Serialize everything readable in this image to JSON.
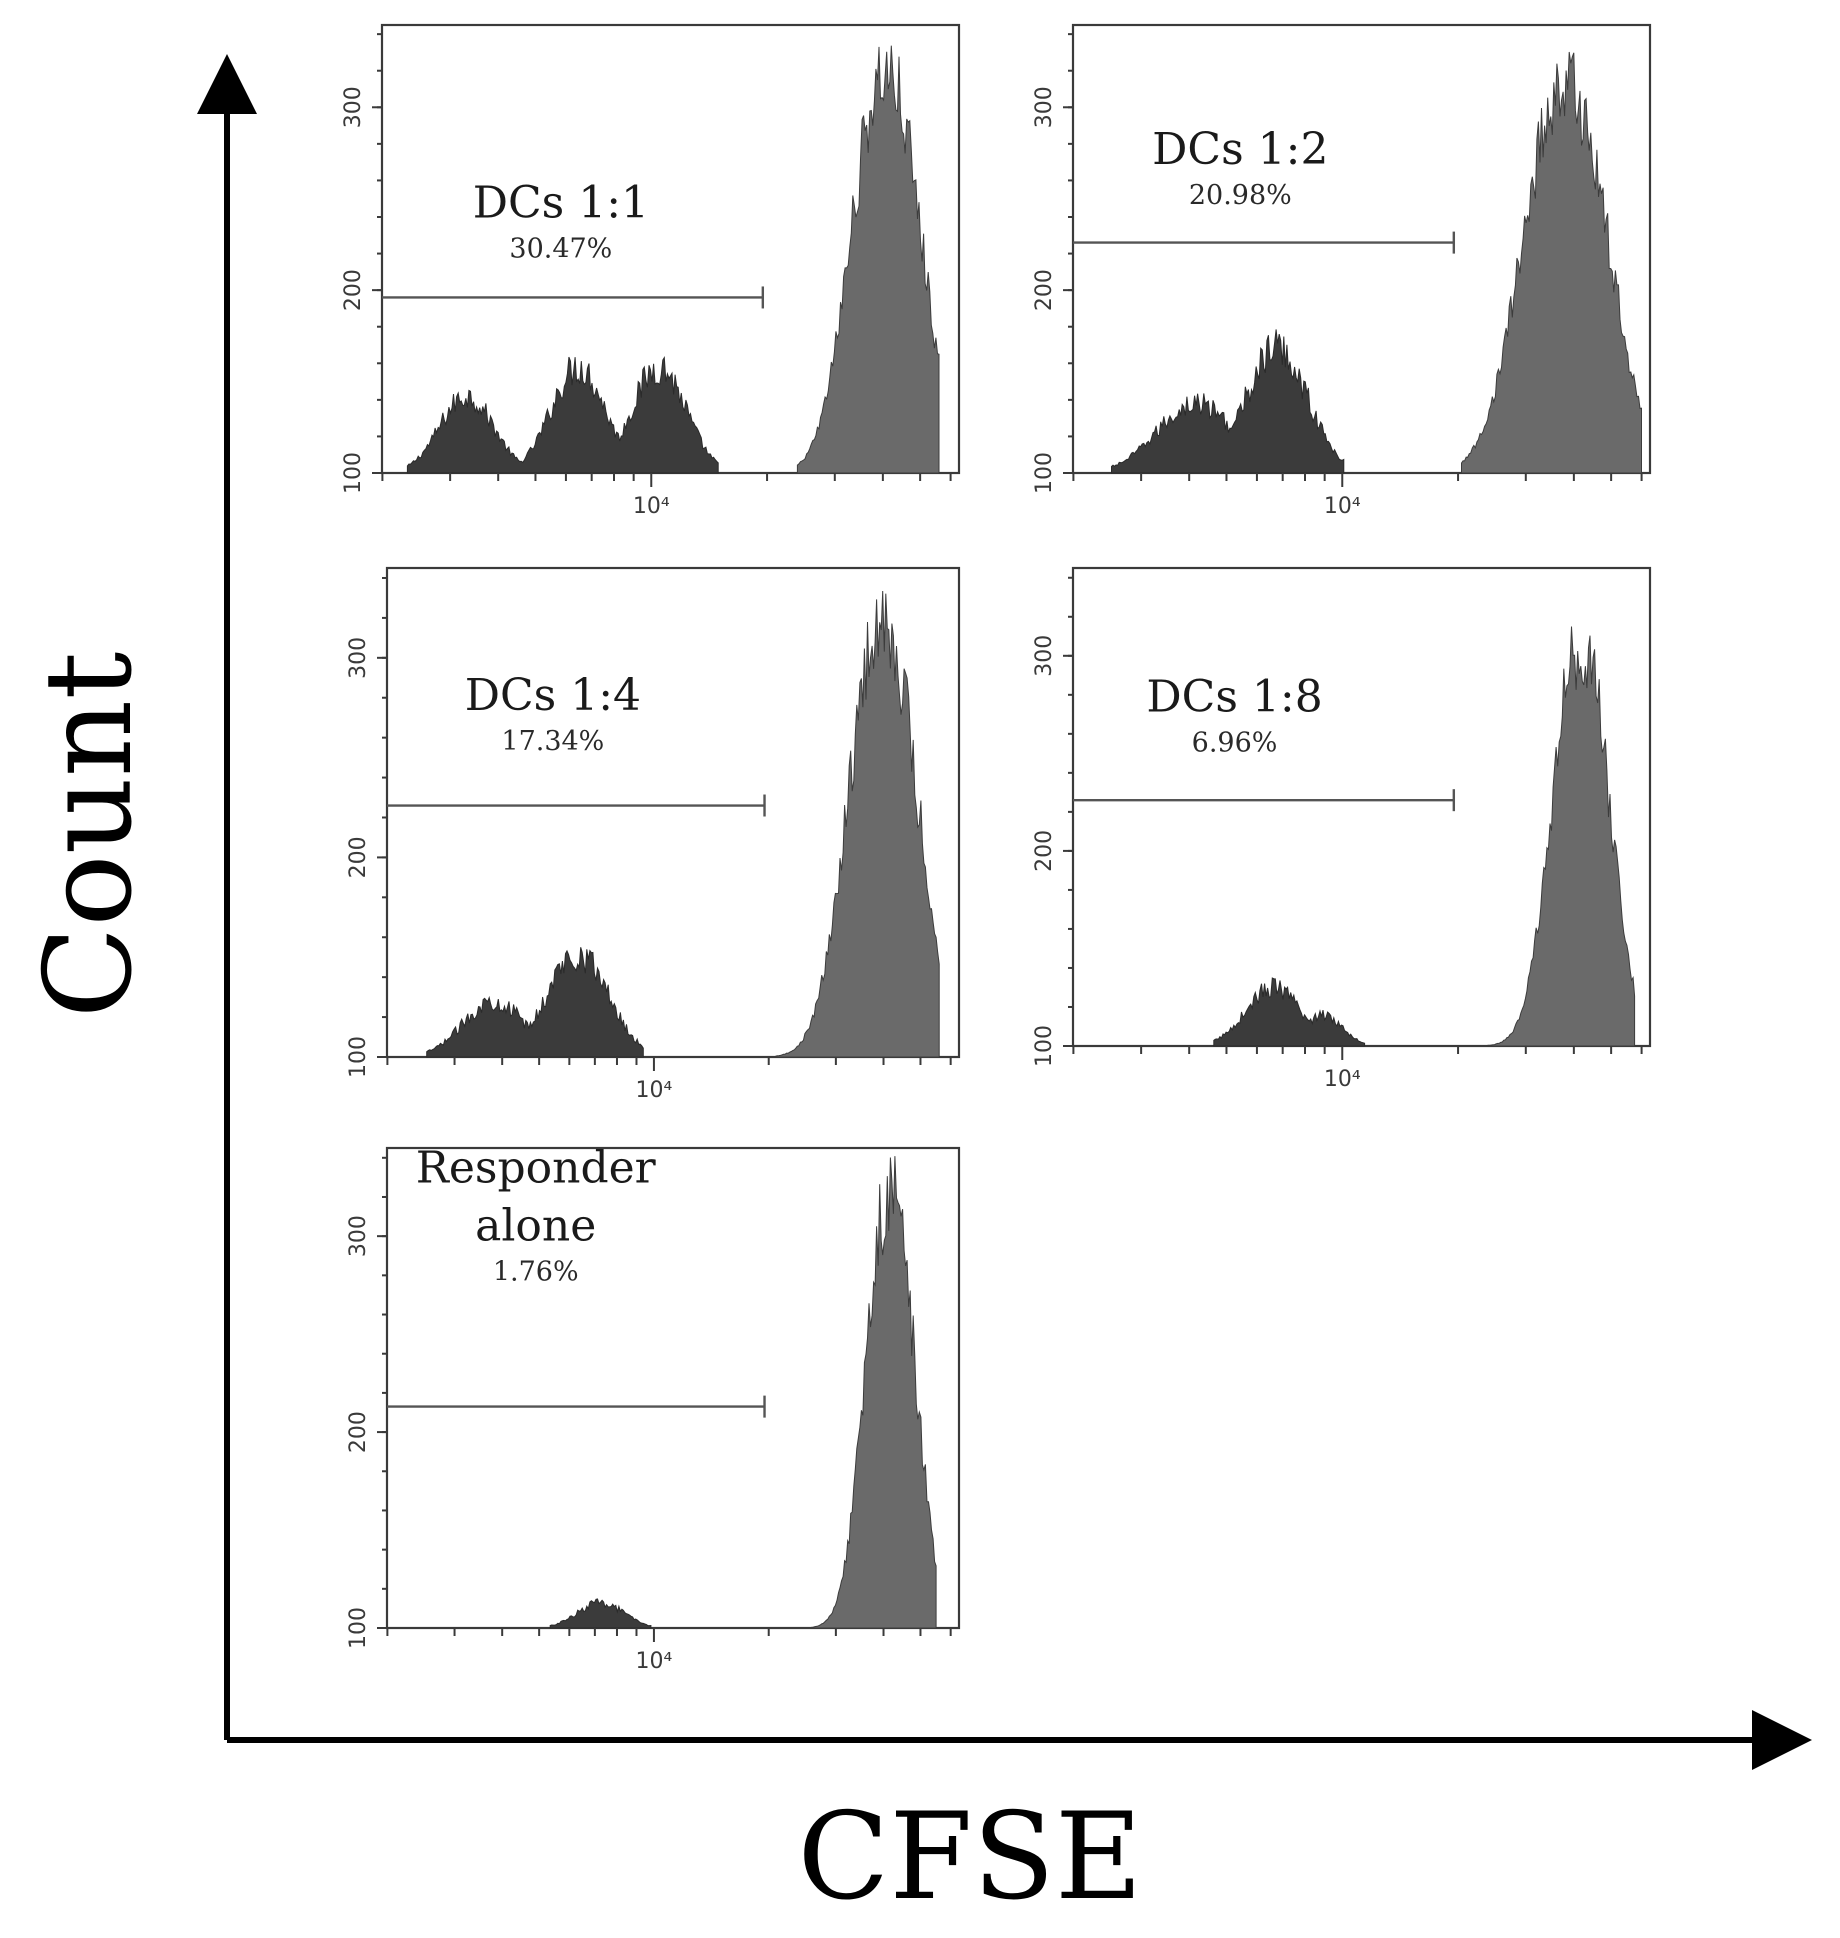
{
  "figure": {
    "y_axis_title": "Count",
    "x_axis_title": "CFSE"
  },
  "colors": {
    "divided_fill": "#3b3b3b",
    "undivided_fill": "#6a6a6a",
    "frame": "#3a3a3a",
    "axis": "#000000"
  },
  "chart_data": [
    {
      "type": "histogram",
      "title_lines": [
        "DCs 1:1"
      ],
      "gate_percent": "30.47%",
      "x_tick_label": "10⁴",
      "y_ticks": [
        100,
        200,
        300
      ],
      "ylim": [
        100,
        345
      ],
      "xlim_log10": [
        3.3,
        4.8
      ],
      "gate_range_log10": [
        3.3,
        4.29
      ],
      "gate_count": 196,
      "divided_peaks": [
        {
          "center": 3.52,
          "width": 0.07,
          "height": 142
        },
        {
          "center": 3.81,
          "width": 0.07,
          "height": 158
        },
        {
          "center": 4.02,
          "width": 0.07,
          "height": 158
        }
      ],
      "undivided_peak": {
        "center": 4.61,
        "sigma": 0.09,
        "height": 318,
        "start": 4.38,
        "end": 4.75
      }
    },
    {
      "type": "histogram",
      "title_lines": [
        "DCs 1:2"
      ],
      "gate_percent": "20.98%",
      "x_tick_label": "10⁴",
      "y_ticks": [
        100,
        200,
        300
      ],
      "ylim": [
        100,
        345
      ],
      "xlim_log10": [
        3.3,
        4.8
      ],
      "gate_range_log10": [
        3.3,
        4.29
      ],
      "gate_count": 226,
      "divided_peaks": [
        {
          "center": 3.62,
          "width": 0.1,
          "height": 138
        },
        {
          "center": 3.83,
          "width": 0.08,
          "height": 168
        }
      ],
      "undivided_peak": {
        "center": 4.58,
        "sigma": 0.11,
        "height": 312,
        "start": 4.31,
        "end": 4.78
      }
    },
    {
      "type": "histogram",
      "title_lines": [
        "DCs 1:4"
      ],
      "gate_percent": "17.34%",
      "x_tick_label": "10⁴",
      "y_ticks": [
        100,
        200,
        300
      ],
      "ylim": [
        100,
        345
      ],
      "xlim_log10": [
        3.3,
        4.8
      ],
      "gate_range_log10": [
        3.3,
        4.29
      ],
      "gate_count": 226,
      "divided_peaks": [
        {
          "center": 3.58,
          "width": 0.08,
          "height": 128
        },
        {
          "center": 3.8,
          "width": 0.08,
          "height": 152
        }
      ],
      "undivided_peak": {
        "center": 4.6,
        "sigma": 0.09,
        "height": 318,
        "start": 4.32,
        "end": 4.75
      }
    },
    {
      "type": "histogram",
      "title_lines": [
        "DCs 1:8"
      ],
      "gate_percent": "6.96%",
      "x_tick_label": "10⁴",
      "y_ticks": [
        100,
        200,
        300
      ],
      "ylim": [
        100,
        345
      ],
      "xlim_log10": [
        3.3,
        4.8
      ],
      "gate_range_log10": [
        3.3,
        4.29
      ],
      "gate_count": 226,
      "divided_peaks": [
        {
          "center": 3.82,
          "width": 0.07,
          "height": 130
        },
        {
          "center": 3.95,
          "width": 0.05,
          "height": 116
        }
      ],
      "undivided_peak": {
        "center": 4.62,
        "sigma": 0.075,
        "height": 305,
        "start": 4.36,
        "end": 4.76
      }
    },
    {
      "type": "histogram",
      "title_lines": [
        "Responder",
        "alone"
      ],
      "gate_percent": "1.76%",
      "x_tick_label": "10⁴",
      "y_ticks": [
        100,
        200,
        300
      ],
      "ylim": [
        100,
        345
      ],
      "xlim_log10": [
        3.3,
        4.8
      ],
      "gate_range_log10": [
        3.3,
        4.29
      ],
      "gate_count": 213,
      "divided_peaks": [
        {
          "center": 3.86,
          "width": 0.06,
          "height": 113
        }
      ],
      "undivided_peak": {
        "center": 4.62,
        "sigma": 0.065,
        "height": 322,
        "start": 4.3,
        "end": 4.74
      }
    }
  ]
}
